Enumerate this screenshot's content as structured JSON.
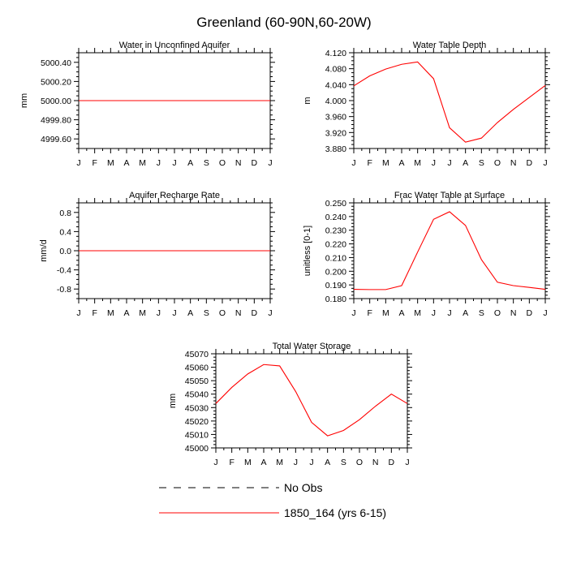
{
  "figure": {
    "title": "Greenland (60-90N,60-20W)"
  },
  "colors": {
    "model": "#ff0000",
    "obs": "#000000",
    "axis": "#000000"
  },
  "chart_data": [
    {
      "type": "line",
      "title": "Water in Unconfined Aquifer",
      "ylabel": "mm",
      "ylim": [
        4999.5,
        5000.5
      ],
      "yticks": [
        4999.6,
        4999.8,
        5000.0,
        5000.2,
        5000.4
      ],
      "ytick_labels": [
        "4999.60",
        "4999.80",
        "5000.00",
        "5000.20",
        "5000.40"
      ],
      "categories": [
        "J",
        "F",
        "M",
        "A",
        "M",
        "J",
        "J",
        "A",
        "S",
        "O",
        "N",
        "D",
        "J"
      ],
      "series": [
        {
          "name": "1850_164 (yrs 6-15)",
          "values": [
            5000.0,
            5000.0,
            5000.0,
            5000.0,
            5000.0,
            5000.0,
            5000.0,
            5000.0,
            5000.0,
            5000.0,
            5000.0,
            5000.0,
            5000.0
          ]
        }
      ]
    },
    {
      "type": "line",
      "title": "Water Table Depth",
      "ylabel": "m",
      "ylim": [
        3.88,
        4.12
      ],
      "yticks": [
        3.88,
        3.92,
        3.96,
        4.0,
        4.04,
        4.08,
        4.12
      ],
      "ytick_labels": [
        "3.880",
        "3.920",
        "3.960",
        "4.000",
        "4.040",
        "4.080",
        "4.120"
      ],
      "categories": [
        "J",
        "F",
        "M",
        "A",
        "M",
        "J",
        "J",
        "A",
        "S",
        "O",
        "N",
        "D",
        "J"
      ],
      "series": [
        {
          "name": "1850_164 (yrs 6-15)",
          "values": [
            4.037,
            4.062,
            4.079,
            4.091,
            4.097,
            4.055,
            3.932,
            3.896,
            3.906,
            3.945,
            3.978,
            4.008,
            4.038
          ]
        }
      ]
    },
    {
      "type": "line",
      "title": "Aquifer Recharge Rate",
      "ylabel": "mm/d",
      "ylim": [
        -1.0,
        1.0
      ],
      "yticks": [
        -0.8,
        -0.4,
        0.0,
        0.4,
        0.8
      ],
      "ytick_labels": [
        "-0.8",
        "-0.4",
        "0.0",
        "0.4",
        "0.8"
      ],
      "categories": [
        "J",
        "F",
        "M",
        "A",
        "M",
        "J",
        "J",
        "A",
        "S",
        "O",
        "N",
        "D",
        "J"
      ],
      "series": [
        {
          "name": "1850_164 (yrs 6-15)",
          "values": [
            0,
            0,
            0,
            0,
            0,
            0,
            0,
            0,
            0,
            0,
            0,
            0,
            0
          ]
        }
      ]
    },
    {
      "type": "line",
      "title": "Frac Water Table at Surface",
      "ylabel": "unitless [0-1]",
      "ylim": [
        0.18,
        0.25
      ],
      "yticks": [
        0.18,
        0.19,
        0.2,
        0.21,
        0.22,
        0.23,
        0.24,
        0.25
      ],
      "ytick_labels": [
        "0.180",
        "0.190",
        "0.200",
        "0.210",
        "0.220",
        "0.230",
        "0.240",
        "0.250"
      ],
      "categories": [
        "J",
        "F",
        "M",
        "A",
        "M",
        "J",
        "J",
        "A",
        "S",
        "O",
        "N",
        "D",
        "J"
      ],
      "series": [
        {
          "name": "1850_164 (yrs 6-15)",
          "values": [
            0.1868,
            0.1866,
            0.1866,
            0.1895,
            0.214,
            0.238,
            0.2435,
            0.2335,
            0.2085,
            0.192,
            0.1895,
            0.1882,
            0.1868
          ]
        }
      ]
    },
    {
      "type": "line",
      "title": "Total Water Storage",
      "ylabel": "mm",
      "ylim": [
        45000,
        45070
      ],
      "yticks": [
        45000,
        45010,
        45020,
        45030,
        45040,
        45050,
        45060,
        45070
      ],
      "ytick_labels": [
        "45000",
        "45010",
        "45020",
        "45030",
        "45040",
        "45050",
        "45060",
        "45070"
      ],
      "categories": [
        "J",
        "F",
        "M",
        "A",
        "M",
        "J",
        "J",
        "A",
        "S",
        "O",
        "N",
        "D",
        "J"
      ],
      "series": [
        {
          "name": "1850_164 (yrs 6-15)",
          "values": [
            45033,
            45045,
            45055,
            45062,
            45061,
            45042,
            45019,
            45009,
            45013,
            45021,
            45031,
            45040,
            45033
          ]
        }
      ]
    }
  ],
  "legend": {
    "entries": [
      {
        "label": "No Obs",
        "style": "dashed",
        "color": "#000000"
      },
      {
        "label": "1850_164 (yrs 6-15)",
        "style": "solid",
        "color": "#ff0000"
      }
    ]
  }
}
